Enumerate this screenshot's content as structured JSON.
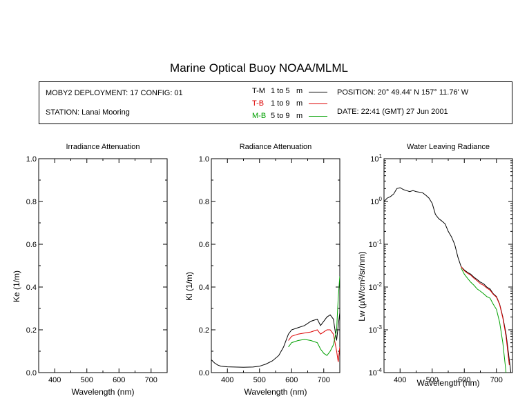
{
  "title": "Marine Optical Buoy NOAA/MLML",
  "info": {
    "deployment": "MOBY2 DEPLOYMENT: 17 CONFIG: 01",
    "station": "STATION: Lanai Mooring",
    "position": "POSITION: 20° 49.44' N   157° 11.76' W",
    "date": "DATE: 22:41 (GMT) 27 Jun 2001"
  },
  "legend": [
    {
      "code": "T-M",
      "range": "1 to 5",
      "unit": "m",
      "color": "#000000"
    },
    {
      "code": "T-B",
      "range": "1 to 9",
      "unit": "m",
      "color": "#dd0000"
    },
    {
      "code": "M-B",
      "range": "5 to 9",
      "unit": "m",
      "color": "#00a000"
    }
  ],
  "chart_data": [
    {
      "type": "line",
      "title": "Irradiance Attenuation",
      "xlabel": "Wavelength (nm)",
      "ylabel": "Ke  (1/m)",
      "xlim": [
        350,
        750
      ],
      "ylim": [
        0,
        1
      ],
      "xticks": [
        "400",
        "500",
        "600",
        "700"
      ],
      "yticks": [
        "0.0",
        "0.2",
        "0.4",
        "0.6",
        "0.8",
        "1.0"
      ],
      "series": []
    },
    {
      "type": "line",
      "title": "Radiance Attenuation",
      "xlabel": "Wavelength (nm)",
      "ylabel": "Kl  (1/m)",
      "xlim": [
        350,
        750
      ],
      "ylim": [
        0,
        1
      ],
      "xticks": [
        "400",
        "500",
        "600",
        "700"
      ],
      "yticks": [
        "0.0",
        "0.2",
        "0.4",
        "0.6",
        "0.8",
        "1.0"
      ],
      "series": [
        {
          "name": "T-M",
          "color": "#000000",
          "x": [
            350,
            360,
            370,
            380,
            400,
            420,
            450,
            480,
            500,
            520,
            540,
            560,
            575,
            590,
            600,
            620,
            640,
            660,
            680,
            690,
            700,
            710,
            720,
            730,
            735,
            740,
            745,
            750
          ],
          "y": [
            0.06,
            0.045,
            0.035,
            0.03,
            0.027,
            0.026,
            0.025,
            0.026,
            0.03,
            0.04,
            0.055,
            0.08,
            0.12,
            0.18,
            0.2,
            0.21,
            0.22,
            0.24,
            0.25,
            0.22,
            0.24,
            0.26,
            0.27,
            0.25,
            0.2,
            0.15,
            0.22,
            0.28
          ]
        },
        {
          "name": "T-B",
          "color": "#dd0000",
          "x": [
            590,
            600,
            620,
            640,
            660,
            680,
            690,
            700,
            710,
            720,
            730,
            740,
            745,
            750
          ],
          "y": [
            0.15,
            0.17,
            0.18,
            0.185,
            0.19,
            0.2,
            0.18,
            0.19,
            0.2,
            0.2,
            0.18,
            0.1,
            0.05,
            0.12
          ]
        },
        {
          "name": "M-B",
          "color": "#00a000",
          "x": [
            590,
            600,
            620,
            640,
            660,
            680,
            690,
            700,
            710,
            720,
            730,
            740,
            745,
            750
          ],
          "y": [
            0.12,
            0.14,
            0.15,
            0.155,
            0.15,
            0.14,
            0.11,
            0.09,
            0.08,
            0.1,
            0.13,
            0.2,
            0.35,
            0.45
          ]
        }
      ]
    },
    {
      "type": "line",
      "title": "Water Leaving Radiance",
      "xlabel": "Wavelength (nm)",
      "ylabel": "Lw  (µW/cm²/sr/nm)",
      "xlim": [
        350,
        750
      ],
      "ylim": [
        0.0001,
        10
      ],
      "yscale": "log",
      "xticks": [
        "400",
        "500",
        "600",
        "700"
      ],
      "yticks": [
        {
          "base": "10",
          "exp": "1"
        },
        {
          "base": "10",
          "exp": "0"
        },
        {
          "base": "10",
          "exp": "-1"
        },
        {
          "base": "10",
          "exp": "-2"
        },
        {
          "base": "10",
          "exp": "-3"
        },
        {
          "base": "10",
          "exp": "-4"
        }
      ],
      "series": [
        {
          "name": "T-M",
          "color": "#000000",
          "x": [
            350,
            360,
            370,
            380,
            390,
            400,
            410,
            420,
            430,
            440,
            450,
            460,
            470,
            480,
            490,
            500,
            510,
            520,
            530,
            540,
            550,
            560,
            570,
            580,
            590,
            600,
            610,
            620,
            630,
            640,
            650,
            660,
            670,
            680,
            690,
            700,
            710,
            720,
            730,
            740,
            745
          ],
          "y": [
            1.0,
            1.2,
            1.3,
            1.5,
            2.0,
            2.1,
            1.9,
            1.8,
            1.7,
            1.8,
            1.7,
            1.65,
            1.6,
            1.4,
            1.2,
            0.9,
            0.5,
            0.4,
            0.35,
            0.3,
            0.2,
            0.15,
            0.1,
            0.05,
            0.03,
            0.025,
            0.022,
            0.02,
            0.017,
            0.015,
            0.013,
            0.012,
            0.01,
            0.009,
            0.007,
            0.006,
            0.004,
            0.002,
            0.0008,
            0.0002,
            0.0001
          ]
        },
        {
          "name": "T-B",
          "color": "#dd0000",
          "x": [
            590,
            600,
            610,
            620,
            630,
            640,
            650,
            660,
            670,
            680,
            690,
            700,
            710,
            720,
            730,
            740
          ],
          "y": [
            0.03,
            0.024,
            0.021,
            0.019,
            0.016,
            0.014,
            0.012,
            0.011,
            0.0095,
            0.0085,
            0.0068,
            0.0058,
            0.0039,
            0.0019,
            0.0007,
            0.00015
          ]
        },
        {
          "name": "M-B",
          "color": "#00a000",
          "x": [
            590,
            600,
            610,
            620,
            630,
            640,
            650,
            660,
            670,
            680,
            690,
            700,
            710,
            720,
            730
          ],
          "y": [
            0.028,
            0.02,
            0.016,
            0.013,
            0.011,
            0.009,
            0.008,
            0.007,
            0.006,
            0.0055,
            0.004,
            0.003,
            0.0015,
            0.0005,
            0.0001
          ]
        }
      ]
    }
  ]
}
